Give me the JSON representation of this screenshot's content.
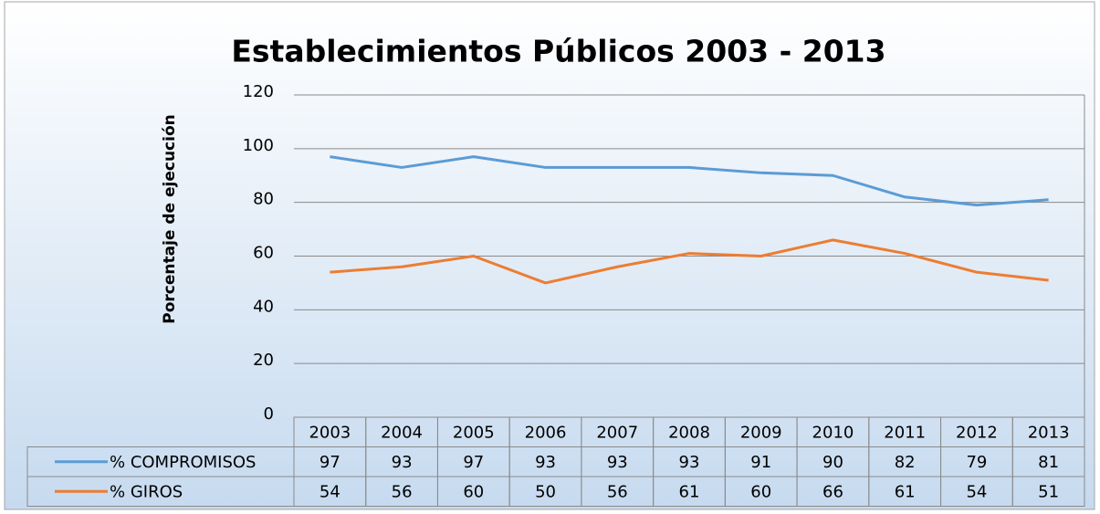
{
  "chart_data": {
    "type": "line",
    "title": "Establecimientos Públicos 2003 - 2013",
    "y_label": "Porcentaje de ejecución",
    "categories": [
      "2003",
      "2004",
      "2005",
      "2006",
      "2007",
      "2008",
      "2009",
      "2010",
      "2011",
      "2012",
      "2013"
    ],
    "series": [
      {
        "name": "% COMPROMISOS",
        "color": "#5b9bd5",
        "values": [
          97,
          93,
          97,
          93,
          93,
          93,
          91,
          90,
          82,
          79,
          81
        ]
      },
      {
        "name": "% GIROS",
        "color": "#ed7d31",
        "values": [
          54,
          56,
          60,
          50,
          56,
          61,
          60,
          66,
          61,
          54,
          51
        ]
      }
    ],
    "ylim": [
      0,
      120
    ],
    "yticks": [
      0,
      20,
      40,
      60,
      80,
      100,
      120
    ],
    "grid": true,
    "data_table": true
  }
}
